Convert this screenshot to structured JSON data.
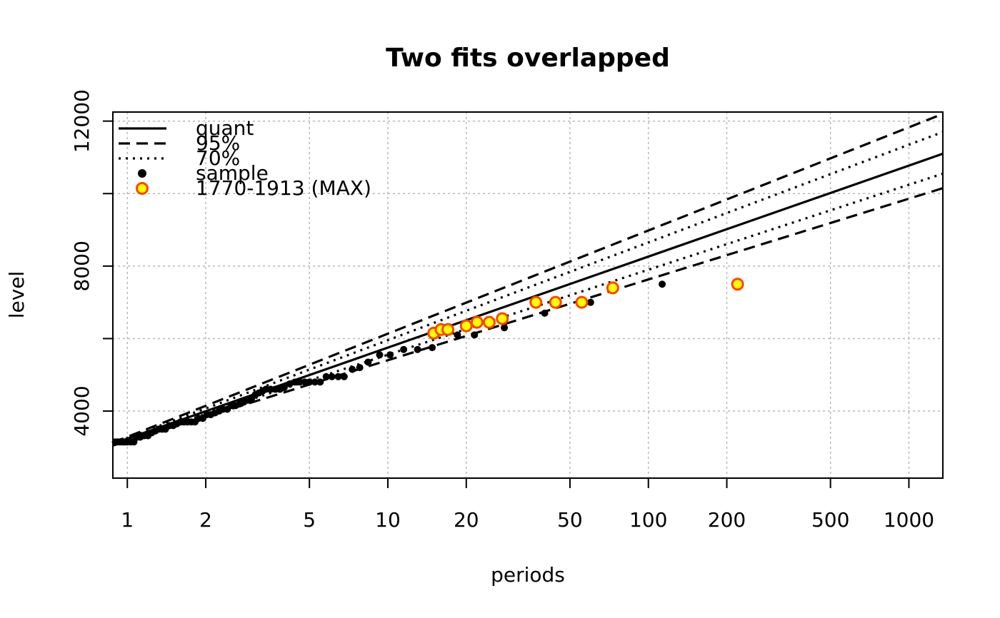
{
  "chart_data": {
    "type": "line",
    "title": "Two fits overlapped",
    "xlabel": "periods",
    "ylabel": "level",
    "x_scale": "log",
    "xlim": [
      0.88,
      1350
    ],
    "ylim": [
      2150,
      12250
    ],
    "x_ticks": [
      1,
      2,
      5,
      10,
      20,
      50,
      100,
      200,
      500,
      1000
    ],
    "y_ticks": [
      4000,
      8000,
      12000
    ],
    "grid_y": [
      4000,
      6000,
      8000,
      10000,
      12000
    ],
    "grid": true,
    "legend_position": "top-left",
    "legend": [
      {
        "label": "quant",
        "style": "solid-line"
      },
      {
        "label": "95%",
        "style": "dashed-line"
      },
      {
        "label": "70%",
        "style": "dotted-line"
      },
      {
        "label": "sample",
        "style": "black-dot"
      },
      {
        "label": "1770-1913 (MAX)",
        "style": "yellow-circle-orange-border"
      }
    ],
    "lines": [
      {
        "style": "solid",
        "points": [
          [
            0.88,
            3100
          ],
          [
            1350,
            11100
          ]
        ]
      },
      {
        "style": "dashed",
        "points": [
          [
            0.88,
            3130
          ],
          [
            1350,
            12200
          ]
        ]
      },
      {
        "style": "dashed",
        "points": [
          [
            0.88,
            3050
          ],
          [
            1350,
            10150
          ]
        ]
      },
      {
        "style": "dotted",
        "points": [
          [
            0.88,
            3110
          ],
          [
            1350,
            11700
          ]
        ]
      },
      {
        "style": "dotted",
        "points": [
          [
            0.88,
            3080
          ],
          [
            1350,
            10550
          ]
        ]
      }
    ],
    "sample": [
      [
        0.9,
        3150
      ],
      [
        0.92,
        3150
      ],
      [
        0.94,
        3150
      ],
      [
        0.96,
        3150
      ],
      [
        0.98,
        3150
      ],
      [
        1.0,
        3150
      ],
      [
        1.03,
        3150
      ],
      [
        1.06,
        3150
      ],
      [
        1.09,
        3280
      ],
      [
        1.12,
        3280
      ],
      [
        1.16,
        3320
      ],
      [
        1.2,
        3320
      ],
      [
        1.24,
        3400
      ],
      [
        1.28,
        3450
      ],
      [
        1.32,
        3500
      ],
      [
        1.36,
        3500
      ],
      [
        1.4,
        3500
      ],
      [
        1.45,
        3600
      ],
      [
        1.5,
        3600
      ],
      [
        1.55,
        3650
      ],
      [
        1.6,
        3700
      ],
      [
        1.65,
        3700
      ],
      [
        1.7,
        3700
      ],
      [
        1.76,
        3700
      ],
      [
        1.82,
        3700
      ],
      [
        1.88,
        3800
      ],
      [
        1.95,
        3800
      ],
      [
        2.02,
        3900
      ],
      [
        2.09,
        3900
      ],
      [
        2.17,
        3950
      ],
      [
        2.25,
        4000
      ],
      [
        2.33,
        4050
      ],
      [
        2.42,
        4050
      ],
      [
        2.5,
        4150
      ],
      [
        2.6,
        4150
      ],
      [
        2.7,
        4200
      ],
      [
        2.8,
        4250
      ],
      [
        2.9,
        4300
      ],
      [
        3.0,
        4350
      ],
      [
        3.1,
        4450
      ],
      [
        3.2,
        4500
      ],
      [
        3.3,
        4550
      ],
      [
        3.4,
        4600
      ],
      [
        3.55,
        4600
      ],
      [
        3.7,
        4600
      ],
      [
        3.85,
        4600
      ],
      [
        4.0,
        4650
      ],
      [
        4.2,
        4750
      ],
      [
        4.4,
        4800
      ],
      [
        4.6,
        4800
      ],
      [
        4.8,
        4800
      ],
      [
        5.0,
        4800
      ],
      [
        5.25,
        4800
      ],
      [
        5.5,
        4800
      ],
      [
        5.8,
        4950
      ],
      [
        6.1,
        4950
      ],
      [
        6.45,
        4950
      ],
      [
        6.8,
        4950
      ],
      [
        7.3,
        5150
      ],
      [
        7.8,
        5200
      ],
      [
        8.4,
        5350
      ],
      [
        9.3,
        5550
      ],
      [
        10.2,
        5550
      ],
      [
        11.5,
        5700
      ],
      [
        13.0,
        5700
      ],
      [
        14.8,
        5750
      ],
      [
        18.5,
        6100
      ],
      [
        21.5,
        6100
      ],
      [
        28.0,
        6300
      ],
      [
        40.0,
        6700
      ],
      [
        60.0,
        7000
      ],
      [
        113.0,
        7500
      ]
    ],
    "max_series": [
      [
        15.0,
        6150
      ],
      [
        16.0,
        6250
      ],
      [
        17.0,
        6250
      ],
      [
        20.0,
        6350
      ],
      [
        22.0,
        6450
      ],
      [
        24.5,
        6450
      ],
      [
        27.5,
        6550
      ],
      [
        37.0,
        7000
      ],
      [
        44.0,
        7000
      ],
      [
        55.5,
        7000
      ],
      [
        73.0,
        7400
      ],
      [
        220.0,
        7500
      ]
    ]
  }
}
